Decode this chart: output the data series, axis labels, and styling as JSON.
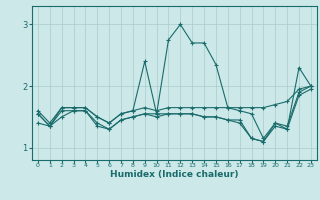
{
  "xlabel": "Humidex (Indice chaleur)",
  "bg_color": "#cce8e8",
  "line_color": "#1a6b6b",
  "grid_color": "#aacccc",
  "xlim": [
    -0.5,
    23.5
  ],
  "ylim": [
    0.8,
    3.3
  ],
  "yticks": [
    1,
    2,
    3
  ],
  "xticks": [
    0,
    1,
    2,
    3,
    4,
    5,
    6,
    7,
    8,
    9,
    10,
    11,
    12,
    13,
    14,
    15,
    16,
    17,
    18,
    19,
    20,
    21,
    22,
    23
  ],
  "series": [
    [
      1.55,
      1.35,
      1.65,
      1.65,
      1.65,
      1.5,
      1.4,
      1.55,
      1.6,
      2.4,
      1.55,
      2.75,
      3.0,
      2.7,
      2.7,
      2.35,
      1.65,
      1.6,
      1.55,
      1.15,
      1.4,
      1.3,
      2.3,
      2.0
    ],
    [
      1.4,
      1.35,
      1.5,
      1.6,
      1.6,
      1.35,
      1.3,
      1.45,
      1.5,
      1.55,
      1.55,
      1.55,
      1.55,
      1.55,
      1.5,
      1.5,
      1.45,
      1.45,
      1.15,
      1.1,
      1.4,
      1.35,
      1.9,
      2.0
    ],
    [
      1.6,
      1.4,
      1.65,
      1.65,
      1.65,
      1.5,
      1.4,
      1.55,
      1.6,
      1.65,
      1.6,
      1.65,
      1.65,
      1.65,
      1.65,
      1.65,
      1.65,
      1.65,
      1.65,
      1.65,
      1.7,
      1.75,
      1.95,
      2.0
    ],
    [
      1.55,
      1.35,
      1.6,
      1.6,
      1.6,
      1.4,
      1.3,
      1.45,
      1.5,
      1.55,
      1.5,
      1.55,
      1.55,
      1.55,
      1.5,
      1.5,
      1.45,
      1.4,
      1.15,
      1.1,
      1.35,
      1.3,
      1.85,
      1.95
    ]
  ]
}
